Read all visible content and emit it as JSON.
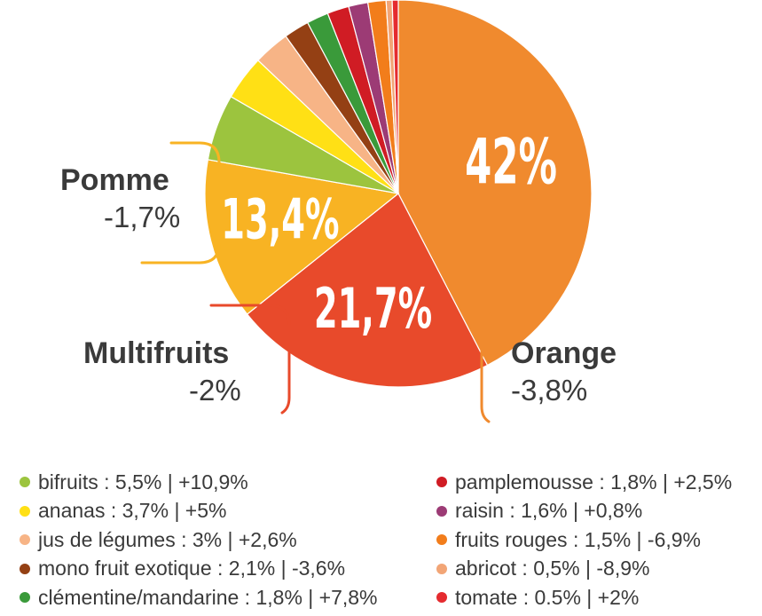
{
  "chart_data": {
    "type": "pie",
    "slices": [
      {
        "name": "Orange",
        "value": 42,
        "label": "42%",
        "change": "-3,8%",
        "color": "#f08a2e"
      },
      {
        "name": "Multifruits",
        "value": 21.7,
        "label": "21,7%",
        "change": "-2%",
        "color": "#e84a2b"
      },
      {
        "name": "Pomme",
        "value": 13.4,
        "label": "13,4%",
        "change": "-1,7%",
        "color": "#f8b323"
      },
      {
        "name": "bifruits",
        "value": 5.5,
        "change": "+10,9%",
        "color": "#9cc43e"
      },
      {
        "name": "ananas",
        "value": 3.7,
        "change": "+5%",
        "color": "#ffe015"
      },
      {
        "name": "jus de légumes",
        "value": 3,
        "change": "+2,6%",
        "color": "#f7b486"
      },
      {
        "name": "mono fruit exotique",
        "value": 2.1,
        "change": "-3,6%",
        "color": "#944014"
      },
      {
        "name": "clémentine/mandarine",
        "value": 1.8,
        "change": "+7,8%",
        "color": "#3a9a3a"
      },
      {
        "name": "pamplemousse",
        "value": 1.8,
        "change": "+2,5%",
        "color": "#d01c24"
      },
      {
        "name": "raisin",
        "value": 1.6,
        "change": "+0,8%",
        "color": "#9c3b75"
      },
      {
        "name": "fruits rouges",
        "value": 1.5,
        "change": "-6,9%",
        "color": "#f27d1b"
      },
      {
        "name": "abricot",
        "value": 0.5,
        "change": "-8,9%",
        "color": "#f2a576"
      },
      {
        "name": "tomate",
        "value": 0.5,
        "change": "+2%",
        "color": "#e52b2f"
      }
    ],
    "legend_placement": "bottom"
  },
  "callouts": {
    "orange": {
      "name": "Orange",
      "change": "-3,8%",
      "color": "#f08a2e"
    },
    "multifruits": {
      "name": "Multifruits",
      "change": "-2%",
      "color": "#e84a2b"
    },
    "pomme": {
      "name": "Pomme",
      "change": "-1,7%",
      "color": "#f8b323"
    }
  },
  "legend": {
    "left": [
      {
        "text": "bifruits : 5,5% | +10,9%",
        "color": "#9cc43e"
      },
      {
        "text": "ananas : 3,7% | +5%",
        "color": "#ffe015"
      },
      {
        "text": "jus de légumes : 3% | +2,6%",
        "color": "#f7b486"
      },
      {
        "text": "mono fruit exotique : 2,1% | -3,6%",
        "color": "#944014"
      },
      {
        "text": "clémentine/mandarine : 1,8% | +7,8%",
        "color": "#3a9a3a"
      }
    ],
    "right": [
      {
        "text": "pamplemousse : 1,8% | +2,5%",
        "color": "#d01c24"
      },
      {
        "text": "raisin : 1,6% | +0,8%",
        "color": "#9c3b75"
      },
      {
        "text": "fruits rouges : 1,5% | -6,9%",
        "color": "#f27d1b"
      },
      {
        "text": "abricot : 0,5% | -8,9%",
        "color": "#f2a576"
      },
      {
        "text": "tomate : 0.5% | +2%",
        "color": "#e52b2f"
      }
    ]
  }
}
